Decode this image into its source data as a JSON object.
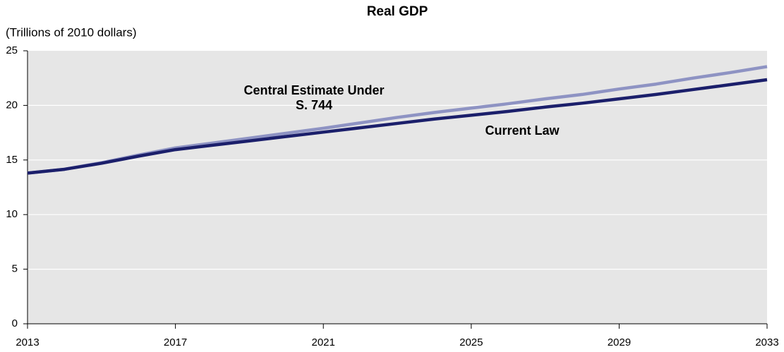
{
  "chart_data": {
    "type": "line",
    "title": "Real GDP",
    "y_label": "(Trillions of 2010 dollars)",
    "x": [
      2013,
      2014,
      2015,
      2016,
      2017,
      2018,
      2019,
      2020,
      2021,
      2022,
      2023,
      2024,
      2025,
      2026,
      2027,
      2028,
      2029,
      2030,
      2031,
      2032,
      2033
    ],
    "series": [
      {
        "name": "Central Estimate Under S. 744",
        "color": "#8e93c3",
        "values": [
          13.8,
          14.15,
          14.75,
          15.45,
          16.1,
          16.55,
          17.0,
          17.45,
          17.9,
          18.4,
          18.9,
          19.35,
          19.75,
          20.15,
          20.6,
          21.0,
          21.5,
          21.95,
          22.5,
          23.0,
          23.55
        ]
      },
      {
        "name": "Current Law",
        "color": "#1b1f6b",
        "values": [
          13.8,
          14.15,
          14.7,
          15.35,
          15.95,
          16.35,
          16.75,
          17.15,
          17.55,
          17.95,
          18.35,
          18.75,
          19.1,
          19.45,
          19.85,
          20.2,
          20.6,
          21.0,
          21.45,
          21.9,
          22.35
        ]
      }
    ],
    "xlim": [
      2013,
      2033
    ],
    "xticks": [
      2013,
      2017,
      2021,
      2025,
      2029,
      2033
    ],
    "ylim": [
      0,
      25
    ],
    "yticks": [
      0,
      5,
      10,
      15,
      20,
      25
    ],
    "grid": true
  }
}
